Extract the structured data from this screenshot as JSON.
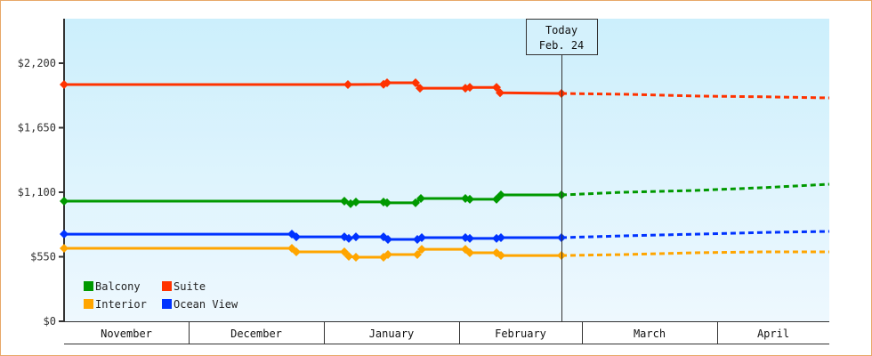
{
  "chart_data": {
    "type": "line",
    "title": "",
    "xlabel": "",
    "ylabel": "",
    "ylim": [
      0,
      2500
    ],
    "y_ticks": [
      "$0",
      "$550",
      "$1,100",
      "$1,650",
      "$2,200"
    ],
    "y_tick_values": [
      0,
      550,
      1100,
      1650,
      2200
    ],
    "x_months": [
      "November",
      "December",
      "January",
      "February",
      "March",
      "April"
    ],
    "annotation": {
      "line1": "Today",
      "line2": "Feb. 24"
    },
    "legend": [
      {
        "name": "Balcony",
        "color": "#009900"
      },
      {
        "name": "Suite",
        "color": "#FF3300"
      },
      {
        "name": "Interior",
        "color": "#FFA500"
      },
      {
        "name": "Ocean View",
        "color": "#0033FF"
      }
    ],
    "series": [
      {
        "name": "Suite",
        "color": "#FF3300",
        "points": [
          [
            71,
            2018
          ],
          [
            385,
            2018
          ],
          [
            390,
            2018
          ],
          [
            430,
            2020
          ],
          [
            434,
            2033
          ],
          [
            466,
            2033
          ],
          [
            471,
            1987
          ],
          [
            522,
            1987
          ],
          [
            527,
            1994
          ],
          [
            557,
            1994
          ],
          [
            561,
            1948
          ],
          [
            630,
            1942
          ]
        ],
        "projection": [
          [
            630,
            1942
          ],
          [
            700,
            1935
          ],
          [
            780,
            1920
          ],
          [
            860,
            1913
          ],
          [
            931,
            1904
          ]
        ]
      },
      {
        "name": "Balcony",
        "color": "#009900",
        "points": [
          [
            71,
            1024
          ],
          [
            386,
            1024
          ],
          [
            393,
            1002
          ],
          [
            399,
            1017
          ],
          [
            430,
            1017
          ],
          [
            434,
            1010
          ],
          [
            466,
            1010
          ],
          [
            472,
            1047
          ],
          [
            522,
            1047
          ],
          [
            527,
            1040
          ],
          [
            557,
            1040
          ],
          [
            562,
            1077
          ],
          [
            630,
            1077
          ]
        ],
        "projection": [
          [
            630,
            1077
          ],
          [
            700,
            1100
          ],
          [
            780,
            1115
          ],
          [
            860,
            1140
          ],
          [
            931,
            1168
          ]
        ]
      },
      {
        "name": "Ocean View",
        "color": "#0033FF",
        "points": [
          [
            71,
            743
          ],
          [
            327,
            743
          ],
          [
            332,
            720
          ],
          [
            386,
            720
          ],
          [
            391,
            706
          ],
          [
            399,
            720
          ],
          [
            430,
            720
          ],
          [
            435,
            698
          ],
          [
            468,
            698
          ],
          [
            473,
            713
          ],
          [
            522,
            713
          ],
          [
            527,
            706
          ],
          [
            557,
            706
          ],
          [
            562,
            713
          ],
          [
            630,
            713
          ]
        ],
        "projection": [
          [
            630,
            713
          ],
          [
            700,
            728
          ],
          [
            780,
            743
          ],
          [
            860,
            758
          ],
          [
            931,
            766
          ]
        ]
      },
      {
        "name": "Interior",
        "color": "#FFA500",
        "points": [
          [
            71,
            622
          ],
          [
            327,
            622
          ],
          [
            332,
            592
          ],
          [
            386,
            592
          ],
          [
            391,
            554
          ],
          [
            399,
            546
          ],
          [
            430,
            546
          ],
          [
            435,
            569
          ],
          [
            468,
            569
          ],
          [
            473,
            614
          ],
          [
            522,
            614
          ],
          [
            527,
            584
          ],
          [
            557,
            584
          ],
          [
            562,
            561
          ],
          [
            630,
            561
          ]
        ],
        "projection": [
          [
            630,
            561
          ],
          [
            700,
            569
          ],
          [
            780,
            584
          ],
          [
            860,
            592
          ],
          [
            931,
            592
          ]
        ]
      }
    ]
  }
}
